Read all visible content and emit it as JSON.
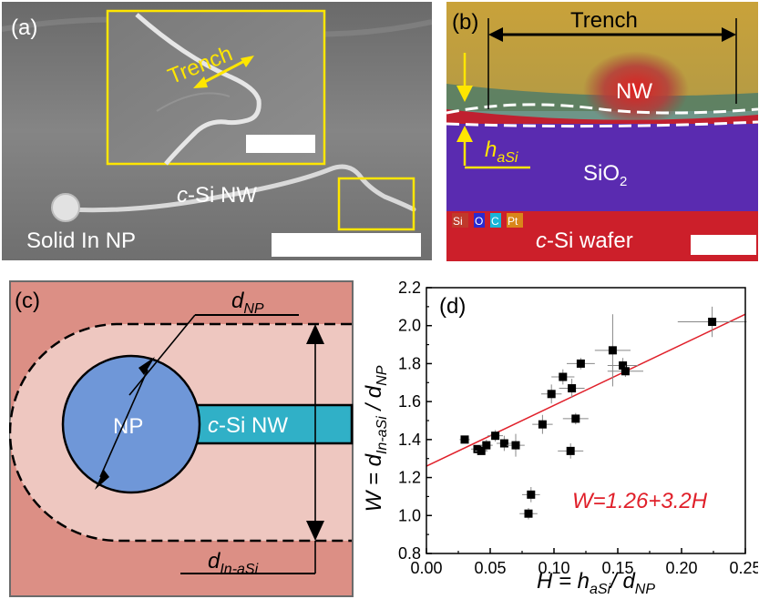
{
  "panel_a": {
    "label": "(a)",
    "inset_label": "Trench",
    "nw_label_prefix": "c",
    "nw_label_rest": "-Si NW",
    "np_label": "Solid In NP"
  },
  "panel_b": {
    "label": "(b)",
    "trench_label": "Trench",
    "nw_label": "NW",
    "h_label_main": "h",
    "h_label_sub": "aSi",
    "sio2_main": "SiO",
    "sio2_sub": "2",
    "wafer_prefix": "c",
    "wafer_rest": "-Si wafer",
    "legend": [
      {
        "text": "Si",
        "color": "#c0392b"
      },
      {
        "text": "O",
        "color": "#2a2ad0"
      },
      {
        "text": "C",
        "color": "#18b6d8"
      },
      {
        "text": "Pt",
        "color": "#d9861a"
      }
    ]
  },
  "panel_c": {
    "label": "(c)",
    "np_label": "NP",
    "nw_prefix": "c",
    "nw_rest": "-Si NW",
    "dnp_main": "d",
    "dnp_sub": "NP",
    "dinasi_main": "d",
    "dinasi_sub": "In-aSi"
  },
  "chart_data": {
    "type": "scatter",
    "panel_label": "(d)",
    "xlabel": "H = h_aSi / d_NP",
    "ylabel": "W = d_In-aSi / d_NP",
    "xlim": [
      0.0,
      0.25
    ],
    "ylim": [
      0.8,
      2.2
    ],
    "x_ticks": [
      "0.00",
      "0.05",
      "0.10",
      "0.15",
      "0.20",
      "0.25"
    ],
    "y_ticks": [
      "0.8",
      "1.0",
      "1.2",
      "1.4",
      "1.6",
      "1.8",
      "2.0",
      "2.2"
    ],
    "fit_label": "W=1.26+3.2H",
    "fit": {
      "intercept": 1.26,
      "slope": 3.2
    },
    "points": [
      {
        "x": 0.03,
        "y": 1.4,
        "xerr": 0.004,
        "yerr": 0.02
      },
      {
        "x": 0.04,
        "y": 1.35,
        "xerr": 0.005,
        "yerr": 0.02
      },
      {
        "x": 0.043,
        "y": 1.34,
        "xerr": 0.005,
        "yerr": 0.02
      },
      {
        "x": 0.047,
        "y": 1.37,
        "xerr": 0.005,
        "yerr": 0.03
      },
      {
        "x": 0.054,
        "y": 1.42,
        "xerr": 0.006,
        "yerr": 0.03
      },
      {
        "x": 0.061,
        "y": 1.38,
        "xerr": 0.006,
        "yerr": 0.04
      },
      {
        "x": 0.07,
        "y": 1.37,
        "xerr": 0.007,
        "yerr": 0.06
      },
      {
        "x": 0.08,
        "y": 1.01,
        "xerr": 0.007,
        "yerr": 0.03
      },
      {
        "x": 0.082,
        "y": 1.11,
        "xerr": 0.007,
        "yerr": 0.04
      },
      {
        "x": 0.091,
        "y": 1.48,
        "xerr": 0.008,
        "yerr": 0.05
      },
      {
        "x": 0.098,
        "y": 1.64,
        "xerr": 0.008,
        "yerr": 0.05
      },
      {
        "x": 0.107,
        "y": 1.73,
        "xerr": 0.009,
        "yerr": 0.04
      },
      {
        "x": 0.113,
        "y": 1.34,
        "xerr": 0.01,
        "yerr": 0.04
      },
      {
        "x": 0.114,
        "y": 1.67,
        "xerr": 0.01,
        "yerr": 0.05
      },
      {
        "x": 0.117,
        "y": 1.51,
        "xerr": 0.01,
        "yerr": 0.03
      },
      {
        "x": 0.121,
        "y": 1.8,
        "xerr": 0.011,
        "yerr": 0.03
      },
      {
        "x": 0.146,
        "y": 1.87,
        "xerr": 0.014,
        "yerr": 0.19
      },
      {
        "x": 0.154,
        "y": 1.79,
        "xerr": 0.012,
        "yerr": 0.04
      },
      {
        "x": 0.156,
        "y": 1.76,
        "xerr": 0.014,
        "yerr": 0.03
      },
      {
        "x": 0.224,
        "y": 2.02,
        "xerr": 0.027,
        "yerr": 0.08
      }
    ]
  }
}
